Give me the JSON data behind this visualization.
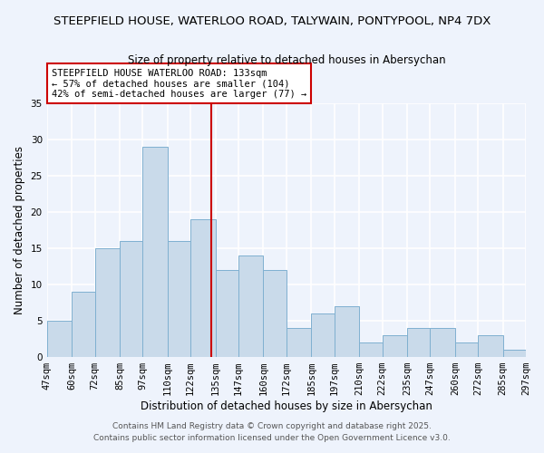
{
  "title": "STEEPFIELD HOUSE, WATERLOO ROAD, TALYWAIN, PONTYPOOL, NP4 7DX",
  "subtitle": "Size of property relative to detached houses in Abersychan",
  "xlabel": "Distribution of detached houses by size in Abersychan",
  "ylabel": "Number of detached properties",
  "bins": [
    47,
    60,
    72,
    85,
    97,
    110,
    122,
    135,
    147,
    160,
    172,
    185,
    197,
    210,
    222,
    235,
    247,
    260,
    272,
    285,
    297
  ],
  "counts": [
    5,
    9,
    15,
    16,
    29,
    16,
    19,
    12,
    14,
    12,
    4,
    6,
    7,
    2,
    3,
    4,
    4,
    2,
    3,
    1
  ],
  "bar_color": "#c9daea",
  "bar_edgecolor": "#7fb0d0",
  "reference_line_x": 133,
  "reference_line_color": "#cc0000",
  "ylim": [
    0,
    35
  ],
  "yticks": [
    0,
    5,
    10,
    15,
    20,
    25,
    30,
    35
  ],
  "tick_labels": [
    "47sqm",
    "60sqm",
    "72sqm",
    "85sqm",
    "97sqm",
    "110sqm",
    "122sqm",
    "135sqm",
    "147sqm",
    "160sqm",
    "172sqm",
    "185sqm",
    "197sqm",
    "210sqm",
    "222sqm",
    "235sqm",
    "247sqm",
    "260sqm",
    "272sqm",
    "285sqm",
    "297sqm"
  ],
  "annotation_line1": "STEEPFIELD HOUSE WATERLOO ROAD: 133sqm",
  "annotation_line2": "← 57% of detached houses are smaller (104)",
  "annotation_line3": "42% of semi-detached houses are larger (77) →",
  "footer1": "Contains HM Land Registry data © Crown copyright and database right 2025.",
  "footer2": "Contains public sector information licensed under the Open Government Licence v3.0.",
  "background_color": "#eef3fc",
  "grid_color": "#ffffff",
  "title_fontsize": 9.5,
  "subtitle_fontsize": 8.5,
  "axis_label_fontsize": 8.5,
  "tick_fontsize": 7.5,
  "annotation_fontsize": 7.5,
  "footer_fontsize": 6.5
}
